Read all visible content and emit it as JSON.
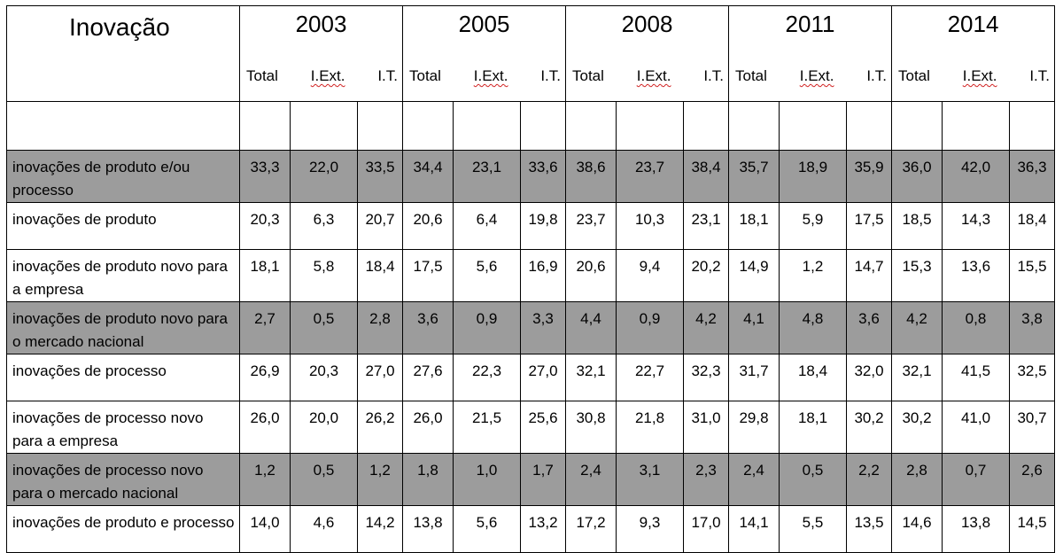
{
  "table": {
    "title": "Inovação",
    "years": [
      "2003",
      "2005",
      "2008",
      "2011",
      "2014"
    ],
    "subheaders": [
      "Total",
      "I.Ext.",
      "I.T."
    ],
    "rows": [
      {
        "label": "inovações de produto e/ou processo",
        "shaded": true,
        "values": [
          "33,3",
          "22,0",
          "33,5",
          "34,4",
          "23,1",
          "33,6",
          "38,6",
          "23,7",
          "38,4",
          "35,7",
          "18,9",
          "35,9",
          "36,0",
          "42,0",
          "36,3"
        ]
      },
      {
        "label": "inovações de produto",
        "shaded": false,
        "values": [
          "20,3",
          "6,3",
          "20,7",
          "20,6",
          "6,4",
          "19,8",
          "23,7",
          "10,3",
          "23,1",
          "18,1",
          "5,9",
          "17,5",
          "18,5",
          "14,3",
          "18,4"
        ]
      },
      {
        "label": "inovações de produto novo para a empresa",
        "shaded": false,
        "values": [
          "18,1",
          "5,8",
          "18,4",
          "17,5",
          "5,6",
          "16,9",
          "20,6",
          "9,4",
          "20,2",
          "14,9",
          "1,2",
          "14,7",
          "15,3",
          "13,6",
          "15,5"
        ]
      },
      {
        "label": "inovações de produto novo para o mercado nacional",
        "shaded": true,
        "values": [
          "2,7",
          "0,5",
          "2,8",
          "3,6",
          "0,9",
          "3,3",
          "4,4",
          "0,9",
          "4,2",
          "4,1",
          "4,8",
          "3,6",
          "4,2",
          "0,8",
          "3,8"
        ]
      },
      {
        "label": "inovações de processo",
        "shaded": false,
        "values": [
          "26,9",
          "20,3",
          "27,0",
          "27,6",
          "22,3",
          "27,0",
          "32,1",
          "22,7",
          "32,3",
          "31,7",
          "18,4",
          "32,0",
          "32,1",
          "41,5",
          "32,5"
        ]
      },
      {
        "label": "inovações de processo novo para a empresa",
        "shaded": false,
        "values": [
          "26,0",
          "20,0",
          "26,2",
          "26,0",
          "21,5",
          "25,6",
          "30,8",
          "21,8",
          "31,0",
          "29,8",
          "18,1",
          "30,2",
          "30,2",
          "41,0",
          "30,7"
        ]
      },
      {
        "label": "inovações de processo novo para o mercado nacional",
        "shaded": true,
        "values": [
          "1,2",
          "0,5",
          "1,2",
          "1,8",
          "1,0",
          "1,7",
          "2,4",
          "3,1",
          "2,3",
          "2,4",
          "0,5",
          "2,2",
          "2,8",
          "0,7",
          "2,6"
        ]
      },
      {
        "label": "inovações de produto e processo",
        "shaded": false,
        "values": [
          "14,0",
          "4,6",
          "14,2",
          "13,8",
          "5,6",
          "13,2",
          "17,2",
          "9,3",
          "17,0",
          "14,1",
          "5,5",
          "13,5",
          "14,6",
          "13,8",
          "14,5"
        ]
      }
    ]
  }
}
